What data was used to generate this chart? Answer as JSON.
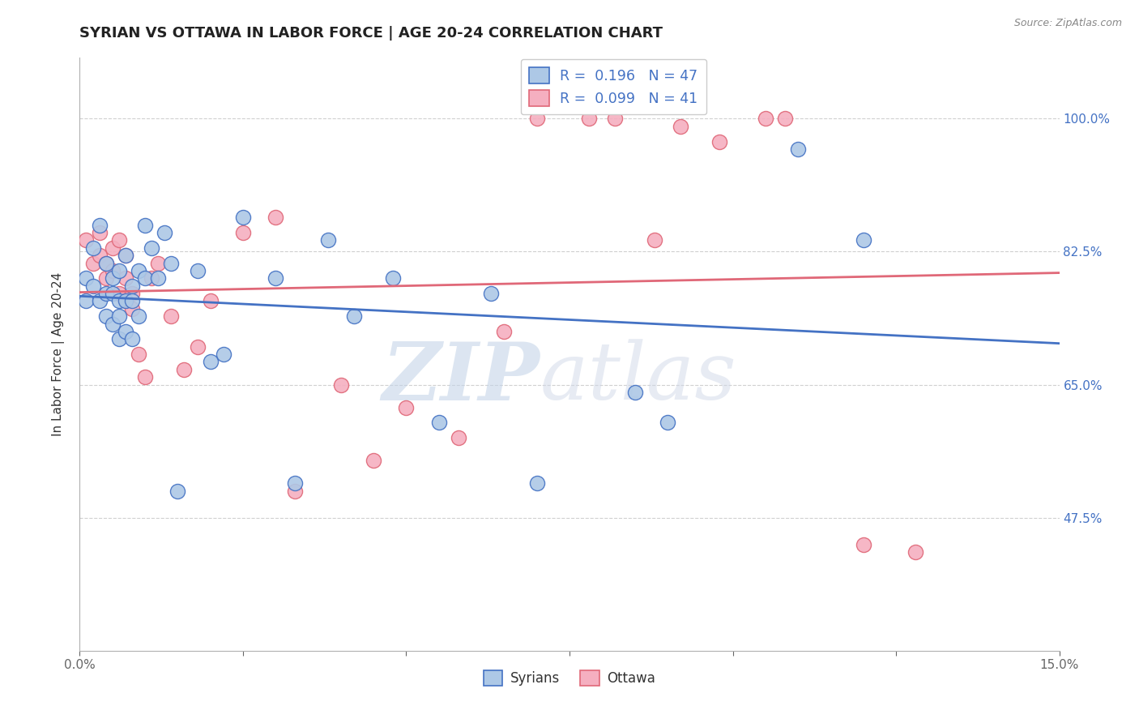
{
  "title": "SYRIAN VS OTTAWA IN LABOR FORCE | AGE 20-24 CORRELATION CHART",
  "source": "Source: ZipAtlas.com",
  "xlabel": "",
  "ylabel": "In Labor Force | Age 20-24",
  "xlim": [
    0.0,
    0.15
  ],
  "ylim": [
    0.3,
    1.08
  ],
  "ytick_positions": [
    0.475,
    0.65,
    0.825,
    1.0
  ],
  "yticklabels": [
    "47.5%",
    "65.0%",
    "82.5%",
    "100.0%"
  ],
  "syrians_x": [
    0.001,
    0.001,
    0.002,
    0.002,
    0.003,
    0.003,
    0.004,
    0.004,
    0.004,
    0.005,
    0.005,
    0.005,
    0.006,
    0.006,
    0.006,
    0.006,
    0.007,
    0.007,
    0.007,
    0.008,
    0.008,
    0.008,
    0.009,
    0.009,
    0.01,
    0.01,
    0.011,
    0.012,
    0.013,
    0.014,
    0.015,
    0.018,
    0.02,
    0.022,
    0.025,
    0.03,
    0.033,
    0.038,
    0.042,
    0.048,
    0.055,
    0.063,
    0.07,
    0.085,
    0.09,
    0.11,
    0.12
  ],
  "syrians_y": [
    0.79,
    0.76,
    0.83,
    0.78,
    0.86,
    0.76,
    0.81,
    0.77,
    0.74,
    0.79,
    0.77,
    0.73,
    0.8,
    0.76,
    0.74,
    0.71,
    0.82,
    0.76,
    0.72,
    0.78,
    0.76,
    0.71,
    0.8,
    0.74,
    0.86,
    0.79,
    0.83,
    0.79,
    0.85,
    0.81,
    0.51,
    0.8,
    0.68,
    0.69,
    0.87,
    0.79,
    0.52,
    0.84,
    0.74,
    0.79,
    0.6,
    0.77,
    0.52,
    0.64,
    0.6,
    0.96,
    0.84
  ],
  "ottawa_x": [
    0.001,
    0.002,
    0.003,
    0.003,
    0.004,
    0.004,
    0.005,
    0.005,
    0.006,
    0.006,
    0.007,
    0.007,
    0.007,
    0.008,
    0.008,
    0.009,
    0.01,
    0.011,
    0.012,
    0.014,
    0.016,
    0.018,
    0.02,
    0.025,
    0.03,
    0.033,
    0.04,
    0.045,
    0.05,
    0.058,
    0.065,
    0.07,
    0.078,
    0.082,
    0.088,
    0.092,
    0.098,
    0.105,
    0.108,
    0.12,
    0.128
  ],
  "ottawa_y": [
    0.84,
    0.81,
    0.85,
    0.82,
    0.79,
    0.81,
    0.8,
    0.83,
    0.84,
    0.77,
    0.76,
    0.82,
    0.79,
    0.75,
    0.77,
    0.69,
    0.66,
    0.79,
    0.81,
    0.74,
    0.67,
    0.7,
    0.76,
    0.85,
    0.87,
    0.51,
    0.65,
    0.55,
    0.62,
    0.58,
    0.72,
    1.0,
    1.0,
    1.0,
    0.84,
    0.99,
    0.97,
    1.0,
    1.0,
    0.44,
    0.43
  ],
  "syrians_R": 0.196,
  "syrians_N": 47,
  "ottawa_R": 0.099,
  "ottawa_N": 41,
  "syrians_color": "#adc8e6",
  "ottawa_color": "#f5afc0",
  "syrians_line_color": "#4472c4",
  "ottawa_line_color": "#e06878",
  "watermark_zip": "ZIP",
  "watermark_atlas": "atlas",
  "grid_color": "#d0d0d0",
  "background_color": "#ffffff",
  "title_fontsize": 13,
  "label_fontsize": 11,
  "tick_fontsize": 11
}
